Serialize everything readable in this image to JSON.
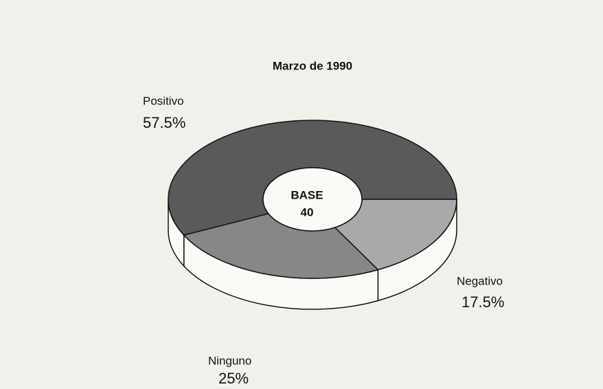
{
  "chart_data": {
    "type": "pie",
    "title": "Marzo de 1990",
    "center_label": "BASE",
    "center_value": "40",
    "categories": [
      "Positivo",
      "Negativo",
      "Ninguno"
    ],
    "values": [
      57.5,
      17.5,
      25
    ],
    "value_labels": [
      "57.5%",
      "17.5%",
      "25%"
    ],
    "colors": [
      "#5a5a5a",
      "#a9a9a9",
      "#878787"
    ]
  }
}
